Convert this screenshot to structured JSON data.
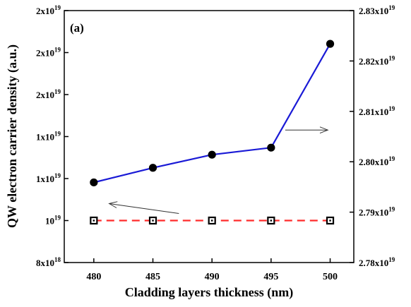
{
  "chart_data": {
    "type": "line",
    "panel_label": "(a)",
    "xlabel": "Cladding layers thickness (nm)",
    "ylabel": "QW electron carrier density (a.u.)",
    "x": [
      480,
      485,
      490,
      495,
      500
    ],
    "x_ticks": [
      "480",
      "485",
      "490",
      "495",
      "500"
    ],
    "xlim": [
      477.5,
      502
    ],
    "left_axis": {
      "ylim": [
        0,
        6
      ],
      "tick_labels": [
        {
          "v": 0,
          "mantissa": "8x10",
          "exp": "18"
        },
        {
          "v": 1,
          "mantissa": "10",
          "exp": "19"
        },
        {
          "v": 2,
          "mantissa": "1x10",
          "exp": "19"
        },
        {
          "v": 3,
          "mantissa": "1x10",
          "exp": "19"
        },
        {
          "v": 4,
          "mantissa": "2x10",
          "exp": "19"
        },
        {
          "v": 5,
          "mantissa": "2x10",
          "exp": "19"
        },
        {
          "v": 6,
          "mantissa": "2x10",
          "exp": "19"
        }
      ]
    },
    "right_axis": {
      "ylim": [
        2.78e+19,
        2.83e+19
      ],
      "tick_labels": [
        {
          "v": 2.78e+19,
          "mantissa": "2.78x10",
          "exp": "19"
        },
        {
          "v": 2.79e+19,
          "mantissa": "2.79x10",
          "exp": "19"
        },
        {
          "v": 2.8e+19,
          "mantissa": "2.80x10",
          "exp": "19"
        },
        {
          "v": 2.81e+19,
          "mantissa": "2.81x10",
          "exp": "19"
        },
        {
          "v": 2.82e+19,
          "mantissa": "2.82x10",
          "exp": "19"
        },
        {
          "v": 2.83e+19,
          "mantissa": "2.83x10",
          "exp": "19"
        }
      ]
    },
    "series": [
      {
        "axis": "left",
        "style": "dashed",
        "marker": "open-square",
        "color": "#ff2a2a",
        "values": [
          1,
          1,
          1,
          1,
          1
        ]
      },
      {
        "axis": "right",
        "style": "solid",
        "marker": "filled-circle",
        "color": "#1a1ad6",
        "values": [
          2.7959e+19,
          2.7988e+19,
          2.8014e+19,
          2.8028e+19,
          2.8234e+19
        ]
      }
    ],
    "arrows": [
      {
        "points_to": "left-axis"
      },
      {
        "points_to": "right-axis"
      }
    ],
    "grid": false,
    "legend": "none"
  }
}
